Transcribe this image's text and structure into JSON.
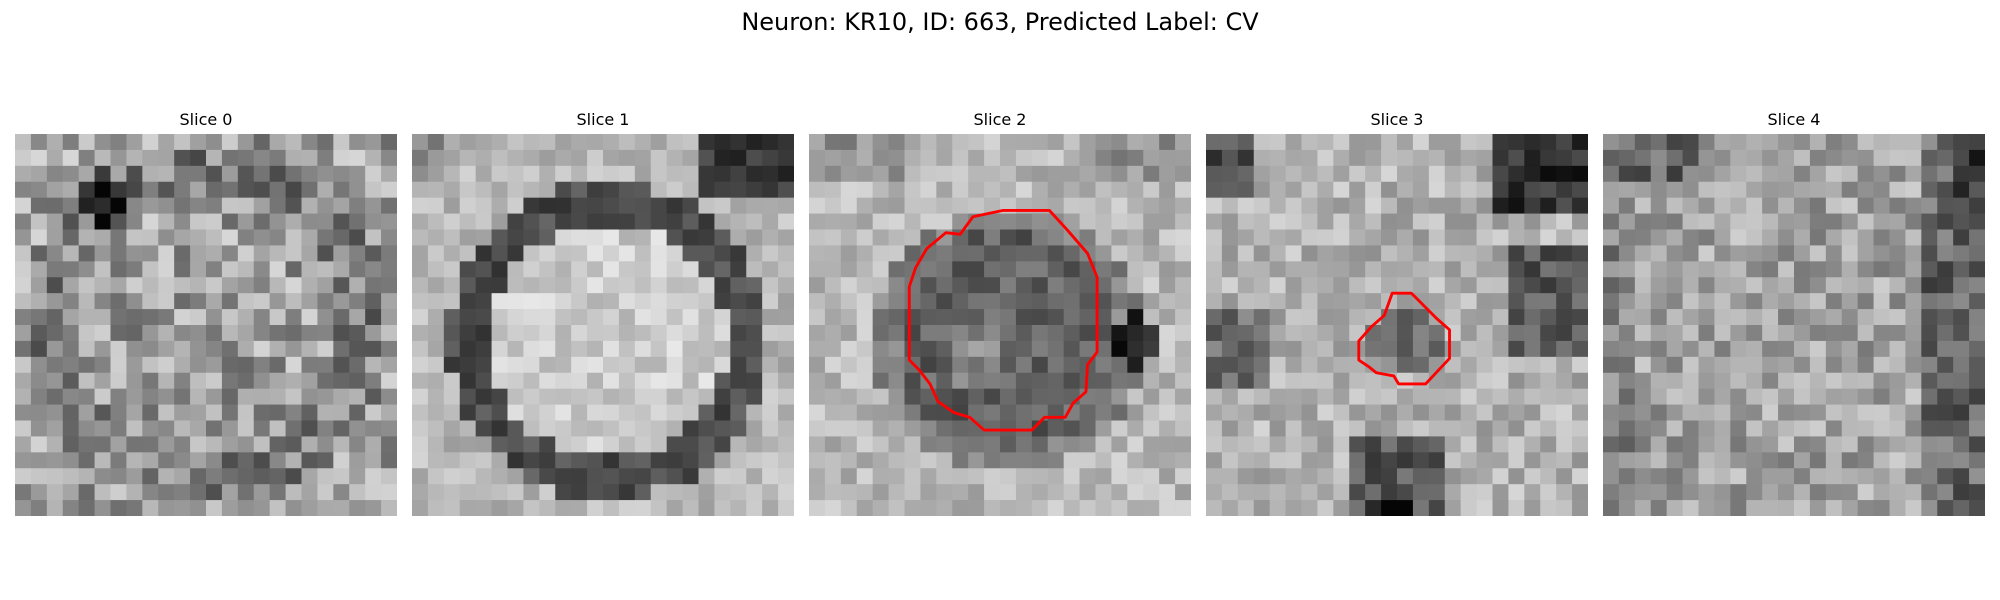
{
  "figure": {
    "title": "Neuron: KR10, ID: 663, Predicted Label: CV"
  },
  "panels": [
    {
      "title": "Slice 0",
      "has_outline": false
    },
    {
      "title": "Slice 1",
      "has_outline": false
    },
    {
      "title": "Slice 2",
      "has_outline": true
    },
    {
      "title": "Slice 3",
      "has_outline": true
    },
    {
      "title": "Slice 4",
      "has_outline": false
    }
  ],
  "colors": {
    "outline": "#ff0000",
    "background": "#ffffff"
  },
  "image": {
    "colormap": "grayscale",
    "grid": "24x24 pixels"
  }
}
